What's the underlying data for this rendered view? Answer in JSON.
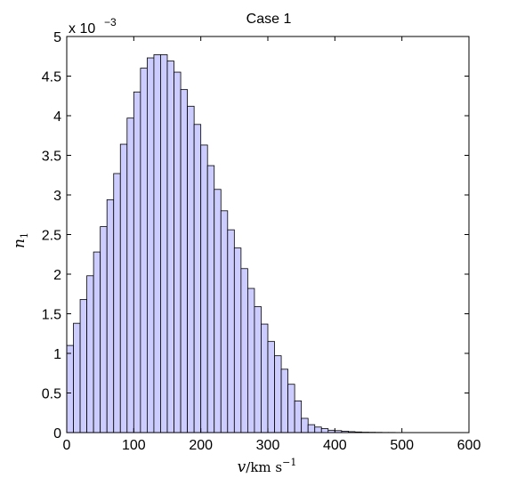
{
  "chart_data": {
    "type": "bar",
    "title": "Case 1",
    "xlabel": "v/km s⁻¹",
    "ylabel": "n1",
    "xlabel_parts": {
      "var": "v",
      "unit": "/km s",
      "exp": "−1"
    },
    "ylabel_parts": {
      "var": "n",
      "sub": "1"
    },
    "y_multiplier": {
      "base": "x 10",
      "exp": "−3"
    },
    "xlim": [
      0,
      600
    ],
    "ylim": [
      0,
      5
    ],
    "xticks": [
      0,
      100,
      200,
      300,
      400,
      500,
      600
    ],
    "yticks": [
      0,
      0.5,
      1,
      1.5,
      2,
      2.5,
      3,
      3.5,
      4,
      4.5,
      5
    ],
    "ytick_labels": [
      "0",
      "0.5",
      "1",
      "1.5",
      "2",
      "2.5",
      "3",
      "3.5",
      "4",
      "4.5",
      "5"
    ],
    "bin_width": 10,
    "bin_edges_start": 0,
    "values": [
      1.1,
      1.38,
      1.68,
      1.98,
      2.28,
      2.6,
      2.94,
      3.27,
      3.64,
      3.97,
      4.3,
      4.6,
      4.73,
      4.77,
      4.77,
      4.69,
      4.55,
      4.33,
      4.12,
      3.89,
      3.63,
      3.37,
      3.07,
      2.8,
      2.56,
      2.33,
      2.07,
      1.82,
      1.59,
      1.37,
      1.15,
      0.97,
      0.8,
      0.61,
      0.4,
      0.18,
      0.1,
      0.07,
      0.05,
      0.03,
      0.025,
      0.018,
      0.012,
      0.008,
      0.005,
      0.004,
      0.003,
      0.002,
      0.002,
      0.001,
      0.001,
      0.001,
      0.0008,
      0.0005,
      0.0004,
      0.0003,
      0.0002,
      0.0002,
      0.0001,
      0.0001
    ],
    "grid": false,
    "bar_fill": "#ccccff",
    "bar_edge": "#000000"
  }
}
